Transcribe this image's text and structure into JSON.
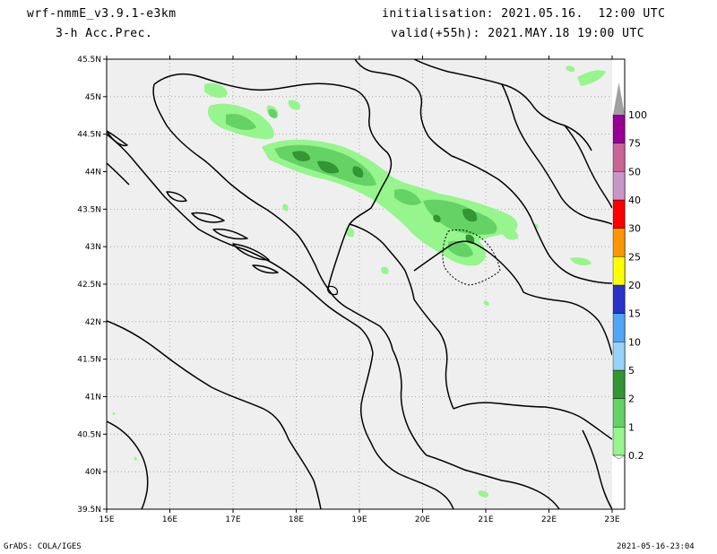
{
  "header": {
    "model": "wrf-nmmE_v3.9.1-e3km",
    "variable": "3-h Acc.Prec.",
    "init": "initialisation: 2021.05.16.  12:00 UTC",
    "valid": "valid(+55h): 2021.MAY.18 19:00 UTC"
  },
  "footer": {
    "credit": "GrADS: COLA/IGES",
    "timestamp": "2021-05-16-23:04"
  },
  "map": {
    "lon_labels": [
      "15E",
      "16E",
      "17E",
      "18E",
      "19E",
      "20E",
      "21E",
      "22E",
      "23E"
    ],
    "lat_labels": [
      "45.5N",
      "45N",
      "44.5N",
      "44N",
      "43.5N",
      "43N",
      "42.5N",
      "42N",
      "41.5N",
      "41N",
      "40.5N",
      "40N",
      "39.5N"
    ],
    "background_color": "#efefef",
    "grid": "dotted",
    "precip_band": "northwest-southeast across Bosnia and Serbia, heaviest near 18.5E 44N and 21E 43.3N"
  },
  "colorbar": {
    "labels": [
      "0.2",
      "1",
      "2",
      "5",
      "10",
      "15",
      "20",
      "25",
      "30",
      "40",
      "50",
      "75",
      "100"
    ],
    "colors": [
      "#96f58c",
      "#64d264",
      "#329632",
      "#96d2fa",
      "#50a5f5",
      "#2832c8",
      "#ffff00",
      "#ff9600",
      "#ff0000",
      "#c896c8",
      "#c86496",
      "#960096",
      "#a0a0a0"
    ]
  }
}
